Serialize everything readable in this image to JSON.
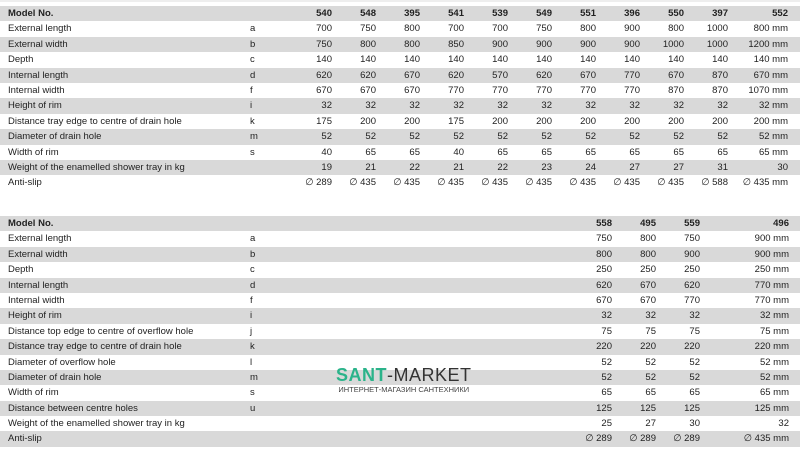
{
  "table1": {
    "header": {
      "label": "Model No.",
      "values": [
        "540",
        "548",
        "395",
        "541",
        "539",
        "549",
        "551",
        "396",
        "550",
        "397",
        "552"
      ]
    },
    "rows": [
      {
        "label": "External length",
        "letter": "a",
        "values": [
          "700",
          "750",
          "800",
          "700",
          "700",
          "750",
          "800",
          "900",
          "800",
          "1000",
          "800 mm"
        ]
      },
      {
        "label": "External width",
        "letter": "b",
        "values": [
          "750",
          "800",
          "800",
          "850",
          "900",
          "900",
          "900",
          "900",
          "1000",
          "1000",
          "1200 mm"
        ]
      },
      {
        "label": "Depth",
        "letter": "c",
        "values": [
          "140",
          "140",
          "140",
          "140",
          "140",
          "140",
          "140",
          "140",
          "140",
          "140",
          "140 mm"
        ]
      },
      {
        "label": "Internal length",
        "letter": "d",
        "values": [
          "620",
          "620",
          "670",
          "620",
          "570",
          "620",
          "670",
          "770",
          "670",
          "870",
          "670 mm"
        ]
      },
      {
        "label": "Internal width",
        "letter": "f",
        "values": [
          "670",
          "670",
          "670",
          "770",
          "770",
          "770",
          "770",
          "770",
          "870",
          "870",
          "1070 mm"
        ]
      },
      {
        "label": "Height of rim",
        "letter": "i",
        "values": [
          "32",
          "32",
          "32",
          "32",
          "32",
          "32",
          "32",
          "32",
          "32",
          "32",
          "32 mm"
        ]
      },
      {
        "label": "Distance tray edge to centre of drain hole",
        "letter": "k",
        "values": [
          "175",
          "200",
          "200",
          "175",
          "200",
          "200",
          "200",
          "200",
          "200",
          "200",
          "200 mm"
        ]
      },
      {
        "label": "Diameter of drain hole",
        "letter": "m",
        "values": [
          "52",
          "52",
          "52",
          "52",
          "52",
          "52",
          "52",
          "52",
          "52",
          "52",
          "52 mm"
        ]
      },
      {
        "label": "Width of rim",
        "letter": "s",
        "values": [
          "40",
          "65",
          "65",
          "40",
          "65",
          "65",
          "65",
          "65",
          "65",
          "65",
          "65 mm"
        ]
      },
      {
        "label": "Weight of the enamelled shower tray in kg",
        "letter": "",
        "values": [
          "19",
          "21",
          "22",
          "21",
          "22",
          "23",
          "24",
          "27",
          "27",
          "31",
          "30"
        ]
      },
      {
        "label": "Anti-slip",
        "letter": "",
        "values": [
          "∅ 289",
          "∅ 435",
          "∅ 435",
          "∅ 435",
          "∅ 435",
          "∅ 435",
          "∅ 435",
          "∅ 435",
          "∅ 435",
          "∅ 588",
          "∅ 435 mm"
        ]
      }
    ]
  },
  "table2": {
    "header": {
      "label": "Model No.",
      "values": [
        "558",
        "495",
        "559",
        "496"
      ]
    },
    "rows": [
      {
        "label": "External length",
        "letter": "a",
        "values": [
          "750",
          "800",
          "750",
          "900 mm"
        ]
      },
      {
        "label": "External width",
        "letter": "b",
        "values": [
          "800",
          "800",
          "900",
          "900 mm"
        ]
      },
      {
        "label": "Depth",
        "letter": "c",
        "values": [
          "250",
          "250",
          "250",
          "250 mm"
        ]
      },
      {
        "label": "Internal length",
        "letter": "d",
        "values": [
          "620",
          "670",
          "620",
          "770 mm"
        ]
      },
      {
        "label": "Internal width",
        "letter": "f",
        "values": [
          "670",
          "670",
          "770",
          "770 mm"
        ]
      },
      {
        "label": "Height of rim",
        "letter": "i",
        "values": [
          "32",
          "32",
          "32",
          "32 mm"
        ]
      },
      {
        "label": "Distance top edge to centre of overflow hole",
        "letter": "j",
        "values": [
          "75",
          "75",
          "75",
          "75 mm"
        ]
      },
      {
        "label": "Distance tray edge to centre of drain hole",
        "letter": "k",
        "values": [
          "220",
          "220",
          "220",
          "220 mm"
        ]
      },
      {
        "label": "Diameter of overflow hole",
        "letter": "l",
        "values": [
          "52",
          "52",
          "52",
          "52 mm"
        ]
      },
      {
        "label": "Diameter of drain hole",
        "letter": "m",
        "values": [
          "52",
          "52",
          "52",
          "52 mm"
        ]
      },
      {
        "label": "Width of rim",
        "letter": "s",
        "values": [
          "65",
          "65",
          "65",
          "65 mm"
        ]
      },
      {
        "label": "Distance between centre holes",
        "letter": "u",
        "values": [
          "125",
          "125",
          "125",
          "125 mm"
        ]
      },
      {
        "label": "Weight of the enamelled shower tray in kg",
        "letter": "",
        "values": [
          "25",
          "27",
          "30",
          "32"
        ]
      },
      {
        "label": "Anti-slip",
        "letter": "",
        "values": [
          "∅ 289",
          "∅ 289",
          "∅ 289",
          "∅ 435 mm"
        ]
      }
    ]
  },
  "watermark": {
    "brand_part1": "SANT",
    "brand_part2": "-MARKET",
    "tagline": "ИНТЕРНЕТ-МАГАЗИН САНТЕХНИКИ",
    "brand_color": "#2bb38a"
  }
}
